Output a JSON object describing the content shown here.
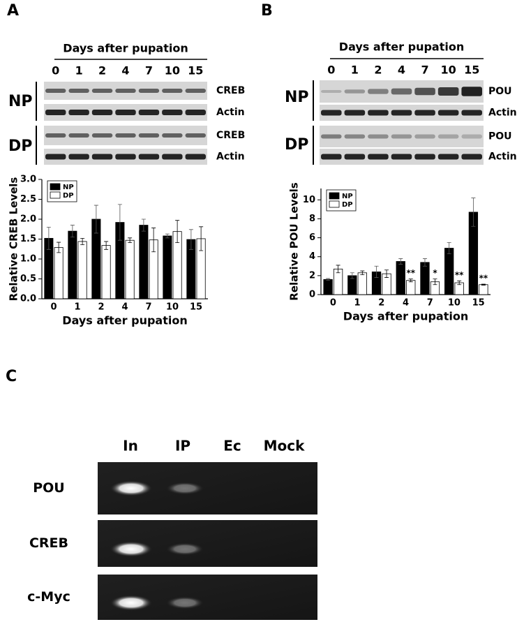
{
  "panel_labels": [
    "A",
    "B",
    "C"
  ],
  "blots": [
    {
      "header": "Days after pupation",
      "days": [
        "0",
        "1",
        "2",
        "4",
        "7",
        "10",
        "15"
      ],
      "groups": [
        {
          "name": "NP",
          "rows": [
            "CREB",
            "Actin"
          ]
        },
        {
          "name": "DP",
          "rows": [
            "CREB",
            "Actin"
          ]
        }
      ]
    },
    {
      "header": "Days after pupation",
      "days": [
        "0",
        "1",
        "2",
        "4",
        "7",
        "10",
        "15"
      ],
      "groups": [
        {
          "name": "NP",
          "rows": [
            "POU",
            "Actin"
          ]
        },
        {
          "name": "DP",
          "rows": [
            "POU",
            "Actin"
          ]
        }
      ]
    }
  ],
  "chart_data": [
    {
      "type": "bar",
      "y_label": "Relative CREB Levels",
      "x_label": "Days after pupation",
      "categories": [
        "0",
        "1",
        "2",
        "4",
        "7",
        "10",
        "15"
      ],
      "series": [
        {
          "name": "NP",
          "color": "#000000",
          "values": [
            1.52,
            1.7,
            2.0,
            1.92,
            1.85,
            1.58,
            1.49
          ],
          "errors": [
            0.28,
            0.15,
            0.35,
            0.45,
            0.15,
            0.05,
            0.25
          ]
        },
        {
          "name": "DP",
          "color": "#ffffff",
          "values": [
            1.29,
            1.44,
            1.34,
            1.47,
            1.48,
            1.69,
            1.51
          ],
          "errors": [
            0.13,
            0.08,
            0.1,
            0.06,
            0.3,
            0.28,
            0.3
          ]
        }
      ],
      "ylim": [
        0,
        3
      ],
      "yticks": [
        {
          "value": 0,
          "label": "0.0"
        },
        {
          "value": 0.5,
          "label": "0.5"
        },
        {
          "value": 1,
          "label": "1.0"
        },
        {
          "value": 1.5,
          "label": "1.5"
        },
        {
          "value": 2,
          "label": "2.0"
        },
        {
          "value": 2.5,
          "label": "2.5"
        },
        {
          "value": 3,
          "label": "3.0"
        }
      ],
      "legend": "top-left"
    },
    {
      "type": "bar",
      "y_label": "Relative POU Levels",
      "x_label": "Days after pupation",
      "categories": [
        "0",
        "1",
        "2",
        "4",
        "7",
        "10",
        "15"
      ],
      "series": [
        {
          "name": "NP",
          "color": "#000000",
          "values": [
            1.6,
            2.0,
            2.4,
            3.5,
            3.4,
            4.9,
            8.7
          ],
          "errors": [
            0.1,
            0.3,
            0.6,
            0.3,
            0.4,
            0.6,
            1.5
          ]
        },
        {
          "name": "DP",
          "color": "#ffffff",
          "values": [
            2.7,
            2.3,
            2.2,
            1.5,
            1.35,
            1.25,
            1.05
          ],
          "errors": [
            0.4,
            0.2,
            0.4,
            0.15,
            0.3,
            0.2,
            0.05
          ]
        }
      ],
      "ylim": [
        0,
        11.2
      ],
      "yticks": [
        0,
        2,
        4,
        6,
        8,
        10
      ],
      "annotations": [
        {
          "text": "**",
          "category": "4"
        },
        {
          "text": "*",
          "category": "7"
        },
        {
          "text": "**",
          "category": "10"
        },
        {
          "text": "**",
          "category": "15"
        }
      ],
      "legend": "top-left"
    }
  ],
  "gel": {
    "columns": [
      "In",
      "IP",
      "Ec",
      "Mock"
    ],
    "rows": [
      "POU",
      "CREB",
      "c-Myc"
    ]
  }
}
